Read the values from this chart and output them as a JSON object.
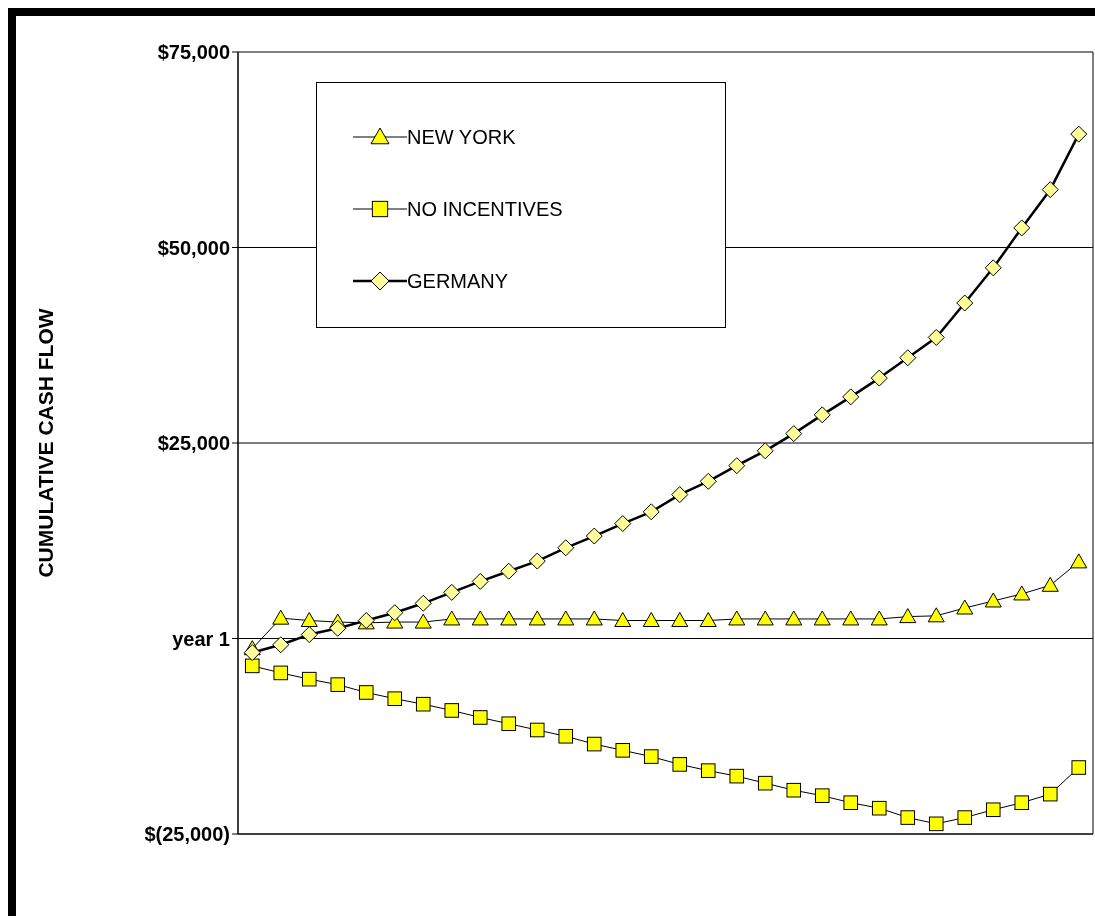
{
  "chart_data": {
    "type": "line",
    "ylabel": "CUMULATIVE CASH FLOW",
    "categories": [
      null,
      null,
      null,
      null,
      null,
      null,
      null,
      null,
      null,
      null,
      null,
      null,
      null,
      null,
      null,
      null,
      null,
      null,
      null,
      null,
      null,
      null,
      null,
      null,
      null,
      null,
      null,
      null,
      null,
      null
    ],
    "ylim": [
      -25000,
      75000
    ],
    "yticks": [
      {
        "value": -25000,
        "label": "$(25,000)"
      },
      {
        "value": 0,
        "label": "year 1"
      },
      {
        "value": 25000,
        "label": "$25,000"
      },
      {
        "value": 50000,
        "label": "$50,000"
      },
      {
        "value": 75000,
        "label": "$75,000"
      }
    ],
    "grid": true,
    "legend": "top left",
    "line_style": "solid",
    "series": [
      {
        "name": "NEW YORK",
        "color": "#ffff00",
        "marker": "triangle",
        "values": [
          -1300,
          2600,
          2300,
          2100,
          2000,
          2100,
          2100,
          2500,
          2500,
          2500,
          2500,
          2500,
          2500,
          2300,
          2300,
          2300,
          2300,
          2500,
          2500,
          2500,
          2500,
          2500,
          2500,
          2800,
          2900,
          3900,
          4800,
          5700,
          6800,
          9800
        ]
      },
      {
        "name": "NO INCENTIVES",
        "color": "#ffff00",
        "marker": "square",
        "values": [
          -3500,
          -4400,
          -5200,
          -5900,
          -6900,
          -7700,
          -8400,
          -9200,
          -10100,
          -10900,
          -11700,
          -12500,
          -13500,
          -14300,
          -15100,
          -16100,
          -16900,
          -17600,
          -18500,
          -19400,
          -20100,
          -21000,
          -21700,
          -22900,
          -23700,
          -22900,
          -21900,
          -21000,
          -19900,
          -16500
        ]
      },
      {
        "name": "GERMANY",
        "color": "#ffff99",
        "marker": "diamond",
        "values": [
          -1800,
          -800,
          500,
          1300,
          2300,
          3300,
          4500,
          5900,
          7300,
          8600,
          9900,
          11600,
          13100,
          14700,
          16200,
          18400,
          20100,
          22100,
          24000,
          26200,
          28600,
          30900,
          33300,
          35900,
          38500,
          42900,
          47400,
          52500,
          57400,
          64500
        ]
      }
    ]
  }
}
